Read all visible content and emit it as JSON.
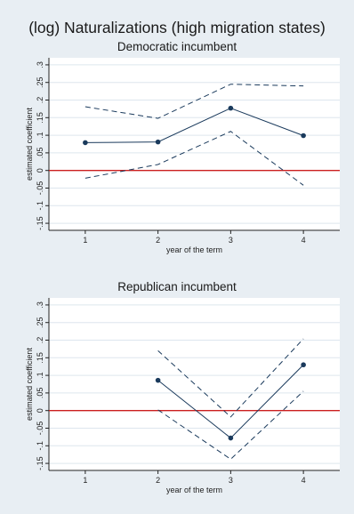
{
  "title": "(log) Naturalizations (high migration states)",
  "colors": {
    "background": "#e8eef3",
    "plot_area": "#ffffff",
    "grid": "#dde6ee",
    "series": "#1a3a5c",
    "reference_line": "#cc1f1f"
  },
  "chart_data": [
    {
      "type": "line",
      "title": "Democratic incumbent",
      "xlabel": "year of the term",
      "ylabel": "estimated coefficient",
      "x_ticks": [
        1,
        2,
        3,
        4
      ],
      "y_ticks": [
        -0.15,
        -0.1,
        -0.05,
        0,
        0.05,
        0.1,
        0.15,
        0.2,
        0.25,
        0.3
      ],
      "y_tick_labels": [
        "-.15",
        "-.1",
        "-.05",
        "0",
        ".05",
        ".1",
        ".15",
        ".2",
        ".25",
        ".3"
      ],
      "xlim": [
        0.5,
        4.5
      ],
      "ylim": [
        -0.17,
        0.32
      ],
      "grid": true,
      "reference_line_y": 0,
      "series": [
        {
          "role": "estimate",
          "style": "solid-markers",
          "x": [
            1,
            2,
            3,
            4
          ],
          "values": [
            0.079,
            0.081,
            0.177,
            0.099
          ]
        },
        {
          "role": "upper",
          "style": "dashed",
          "x": [
            1,
            2,
            3,
            4
          ],
          "values": [
            0.181,
            0.148,
            0.245,
            0.24
          ]
        },
        {
          "role": "lower",
          "style": "dashed",
          "x": [
            1,
            2,
            3,
            4
          ],
          "values": [
            -0.022,
            0.017,
            0.111,
            -0.042
          ]
        }
      ]
    },
    {
      "type": "line",
      "title": "Republican incumbent",
      "xlabel": "year of the term",
      "ylabel": "estimated coefficient",
      "x_ticks": [
        1,
        2,
        3,
        4
      ],
      "y_ticks": [
        -0.15,
        -0.1,
        -0.05,
        0,
        0.05,
        0.1,
        0.15,
        0.2,
        0.25,
        0.3
      ],
      "y_tick_labels": [
        "-.15",
        "-.1",
        "-.05",
        "0",
        ".05",
        ".1",
        ".15",
        ".2",
        ".25",
        ".3"
      ],
      "xlim": [
        0.5,
        4.5
      ],
      "ylim": [
        -0.17,
        0.32
      ],
      "grid": true,
      "reference_line_y": 0,
      "series": [
        {
          "role": "estimate",
          "style": "solid-markers",
          "x": [
            2,
            3,
            4
          ],
          "values": [
            0.086,
            -0.078,
            0.13
          ]
        },
        {
          "role": "upper",
          "style": "dashed",
          "x": [
            2,
            3,
            4
          ],
          "values": [
            0.17,
            -0.018,
            0.204
          ]
        },
        {
          "role": "lower",
          "style": "dashed",
          "x": [
            2,
            3,
            4
          ],
          "values": [
            0.002,
            -0.138,
            0.055
          ]
        }
      ]
    }
  ]
}
